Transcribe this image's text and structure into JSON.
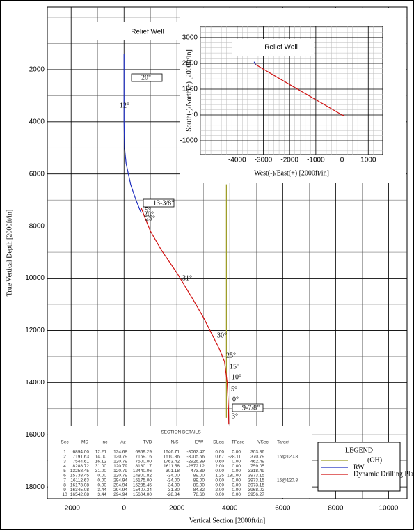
{
  "chart_data": {
    "type": "line",
    "xlabel": "Vertical Section [2000ft/in]",
    "ylabel": "True Vertical Depth [2000ft/in]",
    "xlim": [
      -2900,
      10700
    ],
    "ylim": [
      -400,
      18450
    ],
    "inverted_y": true,
    "xticks": [
      -2000,
      0,
      2000,
      4000,
      6000,
      8000,
      10000
    ],
    "yticks": [
      2000,
      4000,
      6000,
      8000,
      10000,
      12000,
      14000,
      16000,
      18000
    ],
    "grid": true,
    "title": "Relief Well",
    "series": [
      {
        "name": "(OH)",
        "color": "#9a9a20",
        "x": [
          3870,
          3870
        ],
        "values": [
          6400,
          15350
        ]
      },
      {
        "name": "RW",
        "color": "#1f2fbf",
        "x": [
          0,
          0,
          20,
          80,
          250,
          450,
          650
        ],
        "values": [
          1400,
          4000,
          5000,
          5600,
          6400,
          7000,
          7500
        ]
      },
      {
        "name": "Dynamic Drilling Plan",
        "color": "#d01010",
        "x": [
          650,
          800,
          1000,
          1400,
          2000,
          2600,
          3000,
          3300,
          3600,
          3800,
          3900,
          3950,
          3960
        ],
        "values": [
          7300,
          7700,
          8200,
          8900,
          9800,
          10800,
          11500,
          12100,
          12700,
          13200,
          14000,
          15000,
          15600
        ]
      }
    ],
    "annotations": [
      "20\"",
      "12°",
      "13-3/8\"",
      "15°",
      "20°",
      "25°",
      "31°",
      "30°",
      "25°",
      "15°",
      "10°",
      "5°",
      "0°",
      "9-7/8\"",
      "3°"
    ],
    "legend": {
      "title": "LEGEND",
      "position": "lower right"
    }
  },
  "inset": {
    "type": "line",
    "title": "Relief Well",
    "xlabel": "West(-)/East(+) [2000ft/in]",
    "ylabel": "South(-)/North(+) [2000ft/in]",
    "xlim": [
      -5400,
      1550
    ],
    "ylim": [
      -1540,
      3430
    ],
    "xticks": [
      -4000,
      -3000,
      -2000,
      -1000,
      0,
      1000
    ],
    "yticks": [
      -1000,
      0,
      1000,
      2000,
      3000
    ],
    "grid": true,
    "series": [
      {
        "name": "RW",
        "color": "#1f2fbf",
        "x": [
          -3350,
          -3330,
          -3290
        ],
        "values": [
          2060,
          2000,
          1950
        ]
      },
      {
        "name": "Dynamic Drilling Plan",
        "color": "#d01010",
        "x": [
          -3290,
          -2000,
          -1000,
          0,
          89
        ],
        "values": [
          1950,
          1180,
          590,
          0,
          -34
        ]
      }
    ]
  },
  "section_details": {
    "title": "SECTION DETAILS",
    "columns": [
      "Sec",
      "MD",
      "Inc",
      "Az",
      "TVD",
      "N/S",
      "E/W",
      "DLeg",
      "TFace",
      "VSec",
      "Target"
    ],
    "rows": [
      [
        "1",
        "6894.00",
        "12.21",
        "124.68",
        "6869.29",
        "1646.71",
        "-3062.47",
        "0.00",
        "0.00",
        "303.36",
        ""
      ],
      [
        "2",
        "7191.63",
        "14.00",
        "120.79",
        "7159.16",
        "1610.36",
        "-3005.66",
        "0.67",
        "-28.11",
        "370.79",
        "15@120.8"
      ],
      [
        "3",
        "7544.61",
        "16.12",
        "120.79",
        "7500.00",
        "1763.42",
        "-2926.89",
        "0.60",
        "0.00",
        "462.49",
        ""
      ],
      [
        "4",
        "8288.72",
        "31.00",
        "120.79",
        "8180.17",
        "1611.58",
        "-2672.12",
        "2.00",
        "0.00",
        "759.05",
        ""
      ],
      [
        "5",
        "13258.45",
        "31.00",
        "120.79",
        "12440.06",
        "301.18",
        "-473.39",
        "0.00",
        "0.00",
        "3318.49",
        ""
      ],
      [
        "6",
        "15738.45",
        "0.00",
        "120.79",
        "14800.82",
        "-34.00",
        "89.00",
        "1.25",
        "180.00",
        "3973.15",
        ""
      ],
      [
        "7",
        "16112.63",
        "0.00",
        "294.94",
        "15175.00",
        "-34.00",
        "89.00",
        "0.00",
        "0.00",
        "3973.15",
        "15@120.8"
      ],
      [
        "8",
        "16173.08",
        "0.00",
        "294.94",
        "15235.45",
        "-34.00",
        "89.00",
        "0.00",
        "0.00",
        "3973.15",
        ""
      ],
      [
        "9",
        "16345.08",
        "3.44",
        "294.94",
        "15407.34",
        "-31.80",
        "84.32",
        "2.00",
        "0.00",
        "3968.02",
        ""
      ],
      [
        "10",
        "16542.08",
        "3.44",
        "294.94",
        "15604.00",
        "-28.84",
        "78.60",
        "0.00",
        "0.00",
        "3956.27",
        ""
      ]
    ]
  }
}
